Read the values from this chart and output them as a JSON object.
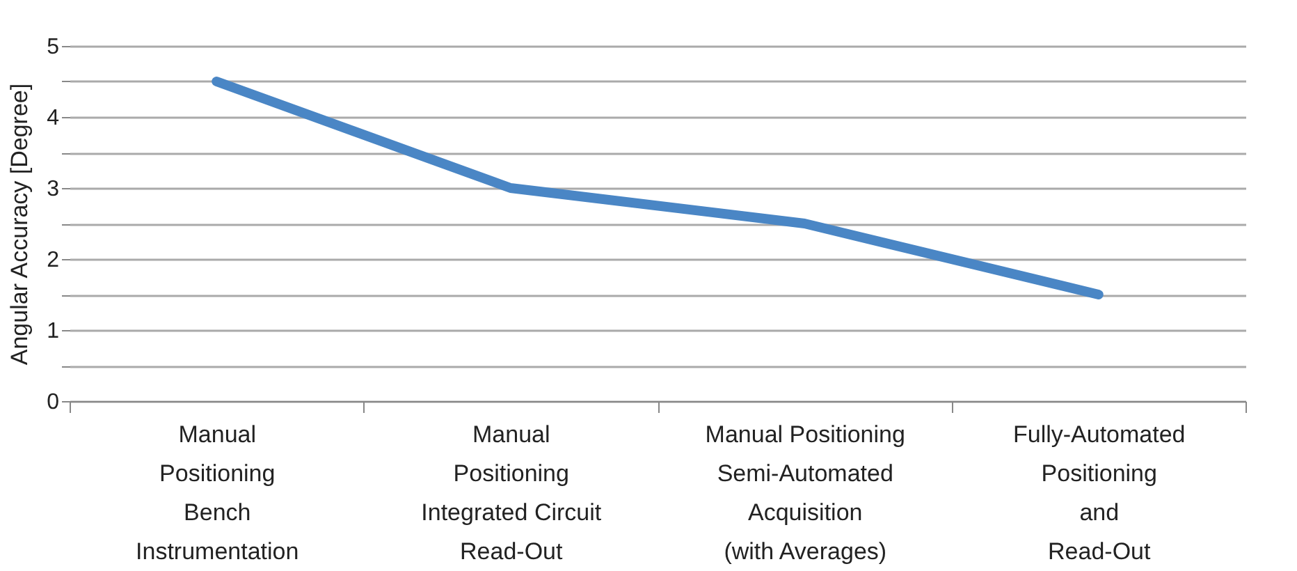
{
  "chart_data": {
    "type": "line",
    "ylabel": "Angular Accuracy [Degree]",
    "categories": [
      "Manual\nPositioning\nBench\nInstrumentation",
      "Manual\nPositioning\nIntegrated Circuit\nRead-Out",
      "Manual Positioning\nSemi-Automated\nAcquisition\n(with Averages)",
      "Fully-Automated\nPositioning\nand\nRead-Out"
    ],
    "series": [
      {
        "color": "#4a86c5",
        "values": [
          4.5,
          3,
          2.5,
          1.5
        ]
      }
    ],
    "ylim": [
      0,
      5
    ],
    "yticks": [
      0,
      {
        "value": 0.5,
        "label": null
      },
      1,
      {
        "value": 1.5,
        "label": null
      },
      2,
      {
        "value": 2.5,
        "label": null
      },
      3,
      {
        "value": 3.5,
        "label": null
      },
      4,
      {
        "value": 4.5,
        "label": null
      },
      5
    ],
    "grid": "y",
    "marker": "none",
    "line_style": "solid"
  }
}
